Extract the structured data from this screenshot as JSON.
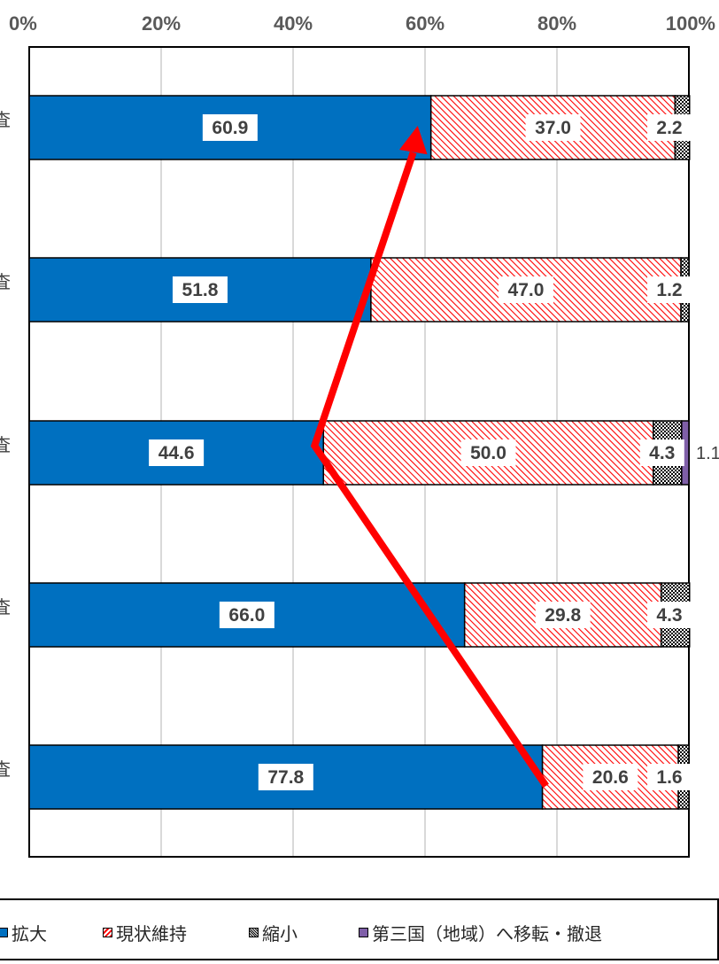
{
  "chart_data": {
    "type": "bar",
    "orientation": "horizontal",
    "stacked": true,
    "percent": true,
    "xlim": [
      0,
      100
    ],
    "x_ticks": [
      "0%",
      "20%",
      "40%",
      "60%",
      "80%",
      "100%"
    ],
    "category_labels": [
      "査",
      "査",
      "査",
      "査",
      "査"
    ],
    "series": [
      {
        "name": "拡大",
        "color": "#0070C0",
        "pattern": "solid",
        "values": [
          60.9,
          51.8,
          44.6,
          66.0,
          77.8
        ],
        "labels": [
          "60.9",
          "51.8",
          "44.6",
          "66.0",
          "77.8"
        ]
      },
      {
        "name": "現状維持",
        "color": "#FF0000",
        "pattern": "diagonal-hatch",
        "values": [
          37.0,
          47.0,
          50.0,
          29.8,
          20.6
        ],
        "labels": [
          "37.0",
          "47.0",
          "50.0",
          "29.8",
          "20.6"
        ]
      },
      {
        "name": "縮小",
        "color": "#000000",
        "pattern": "dots",
        "values": [
          2.2,
          1.2,
          4.3,
          4.3,
          1.6
        ],
        "labels": [
          "2.2",
          "1.2",
          "4.3",
          "4.3",
          "1.6"
        ]
      },
      {
        "name": "第三国（地域）へ移転・撤退",
        "color": "#7F5FA8",
        "pattern": "solid",
        "values": [
          0,
          0,
          1.1,
          0,
          0
        ],
        "labels": [
          "",
          "",
          "1.1",
          "",
          ""
        ]
      }
    ],
    "trend_arrow_color": "#FF0000",
    "grid": true,
    "legend_position": "bottom"
  }
}
